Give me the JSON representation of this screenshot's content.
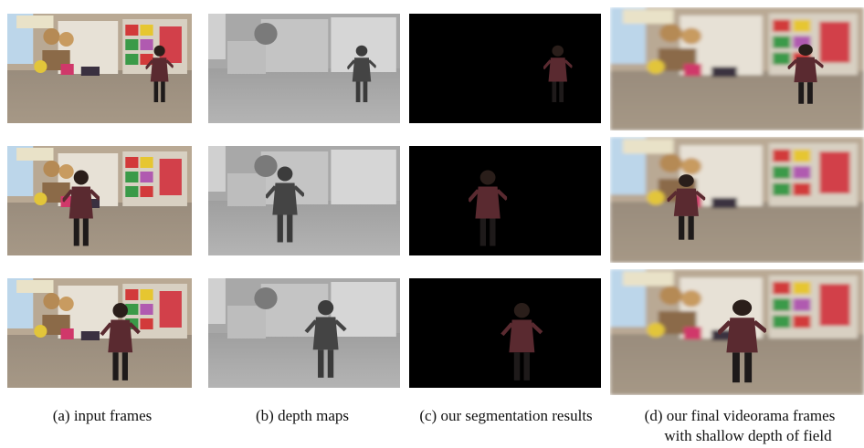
{
  "captions": [
    {
      "lines": [
        "(a) input frames"
      ]
    },
    {
      "lines": [
        "(b) depth maps"
      ]
    },
    {
      "lines": [
        "(c) our segmentation results"
      ]
    },
    {
      "lines": [
        "(d) our final videorama frames",
        "with shallow depth of field"
      ]
    }
  ]
}
